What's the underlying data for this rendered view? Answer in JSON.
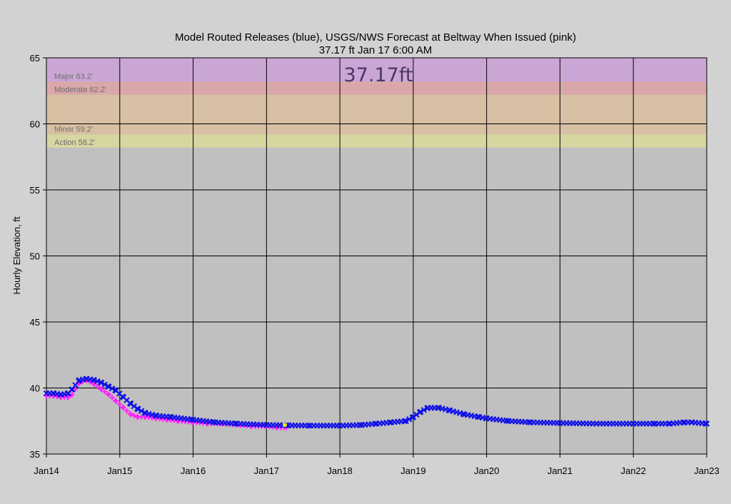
{
  "chart_data": {
    "type": "scatter",
    "title": "Model Routed Releases (blue), USGS/NWS Forecast at Beltway When Issued (pink)",
    "subtitle": "37.17 ft Jan 17 6:00 AM",
    "big_label": "37.17ft",
    "ylabel": "Hourly  Elevation, ft",
    "xlabel": "",
    "ylim": [
      35,
      65
    ],
    "xlim": [
      0,
      9
    ],
    "y_ticks": [
      35,
      40,
      45,
      50,
      55,
      60,
      65
    ],
    "x_ticks": [
      {
        "x": 0,
        "label": "Jan14"
      },
      {
        "x": 1,
        "label": "Jan15"
      },
      {
        "x": 2,
        "label": "Jan16"
      },
      {
        "x": 3,
        "label": "Jan17"
      },
      {
        "x": 4,
        "label": "Jan18"
      },
      {
        "x": 5,
        "label": "Jan19"
      },
      {
        "x": 6,
        "label": "Jan20"
      },
      {
        "x": 7,
        "label": "Jan21"
      },
      {
        "x": 8,
        "label": "Jan22"
      },
      {
        "x": 9,
        "label": "Jan23"
      }
    ],
    "grid": true,
    "flood_bands": [
      {
        "label": "Major 63.2'",
        "from": 63.2,
        "to": 65.0,
        "color": "#caa6d5"
      },
      {
        "label": "Moderate 62.2'",
        "from": 62.2,
        "to": 63.2,
        "color": "#daa7a9"
      },
      {
        "label": "Minor 59.2'",
        "from": 59.2,
        "to": 62.2,
        "color": "#d8c0a4"
      },
      {
        "label": "Action 58.2'",
        "from": 58.2,
        "to": 59.2,
        "color": "#d7d6a1"
      }
    ],
    "series": [
      {
        "color": "#ff20ff",
        "marker": "plus",
        "x": [
          0.0,
          0.1,
          0.2,
          0.3,
          0.35,
          0.45,
          0.55,
          0.65,
          0.75,
          0.85,
          0.95,
          1.05,
          1.15,
          1.25,
          1.35,
          1.5,
          1.65,
          1.8,
          2.0,
          2.2,
          2.4,
          2.6,
          2.8,
          3.0,
          3.15,
          3.27
        ],
        "y": [
          39.4,
          39.4,
          39.3,
          39.3,
          39.5,
          40.4,
          40.6,
          40.3,
          39.9,
          39.5,
          39.0,
          38.5,
          38.0,
          37.8,
          37.8,
          37.7,
          37.6,
          37.5,
          37.4,
          37.3,
          37.3,
          37.2,
          37.1,
          37.1,
          37.0,
          37.0
        ]
      },
      {
        "color": "#1010e8",
        "marker": "x",
        "x": [
          0.0,
          0.1,
          0.2,
          0.3,
          0.35,
          0.45,
          0.55,
          0.65,
          0.75,
          0.85,
          0.95,
          1.05,
          1.15,
          1.25,
          1.35,
          1.5,
          1.7,
          2.0,
          2.3,
          2.6,
          3.0,
          3.3,
          3.6,
          4.0,
          4.3,
          4.5,
          4.7,
          4.9,
          5.0,
          5.1,
          5.2,
          5.35,
          5.5,
          5.7,
          5.9,
          6.0,
          6.3,
          6.6,
          7.0,
          7.5,
          8.0,
          8.3,
          8.5,
          8.7,
          8.8,
          9.0
        ],
        "y": [
          39.6,
          39.6,
          39.5,
          39.6,
          39.9,
          40.6,
          40.7,
          40.6,
          40.4,
          40.1,
          39.8,
          39.3,
          38.8,
          38.4,
          38.1,
          37.9,
          37.8,
          37.6,
          37.4,
          37.3,
          37.2,
          37.17,
          37.15,
          37.15,
          37.2,
          37.3,
          37.4,
          37.5,
          37.8,
          38.2,
          38.5,
          38.5,
          38.3,
          38.0,
          37.8,
          37.7,
          37.5,
          37.4,
          37.35,
          37.3,
          37.3,
          37.3,
          37.3,
          37.4,
          37.4,
          37.3
        ]
      },
      {
        "color": "#e8e800",
        "marker": "dot",
        "x": [
          3.25
        ],
        "y": [
          37.2
        ]
      }
    ]
  }
}
